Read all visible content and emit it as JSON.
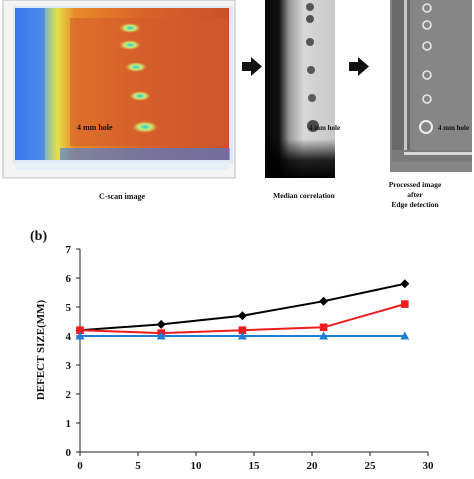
{
  "panel_a": {
    "cscan_caption": "C-scan image",
    "median_caption": "Median correlation",
    "processed_caption_line1": "Processed image",
    "processed_caption_line2": "after",
    "processed_caption_line3": "Edge detection",
    "hole_label_cscan": "4 mm hole",
    "hole_label_median": "4 mm hole",
    "hole_label_processed": "4 mm hole"
  },
  "panel_b": {
    "label": "(b)"
  },
  "chart_data": {
    "type": "line",
    "xlabel": "",
    "ylabel": "DEFECT SIZE(MM)",
    "xlim": [
      0,
      30
    ],
    "ylim": [
      0,
      7
    ],
    "xticks": [
      0,
      5,
      10,
      15,
      20,
      25,
      30
    ],
    "yticks": [
      0,
      1,
      2,
      3,
      4,
      5,
      6,
      7
    ],
    "grid": false,
    "x": [
      0,
      7,
      14,
      21,
      28
    ],
    "series": [
      {
        "marker": "diamond",
        "color": "#000000",
        "values": [
          4.2,
          4.4,
          4.7,
          5.2,
          5.8
        ]
      },
      {
        "marker": "square",
        "color": "#ee1c1c",
        "values": [
          4.2,
          4.1,
          4.2,
          4.3,
          5.1
        ]
      },
      {
        "marker": "triangle",
        "color": "#1f7fd6",
        "values": [
          4.0,
          4.0,
          4.0,
          4.0,
          4.0
        ]
      }
    ]
  }
}
